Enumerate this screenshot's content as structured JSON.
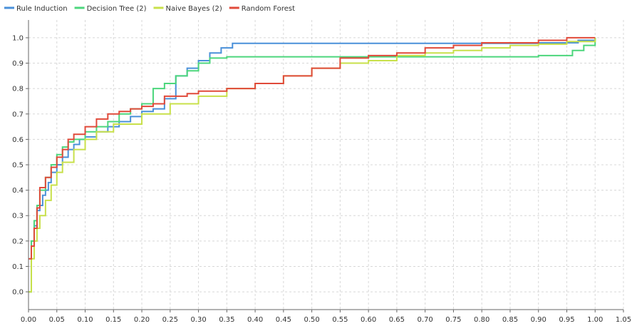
{
  "chart_data": {
    "type": "line",
    "title": "",
    "xlabel": "",
    "ylabel": "",
    "xlim": [
      0,
      1.05
    ],
    "ylim": [
      -0.07,
      1.07
    ],
    "grid": true,
    "legend_position": "top-left",
    "x_ticks": [
      "0.00",
      "0.05",
      "0.10",
      "0.15",
      "0.20",
      "0.25",
      "0.30",
      "0.35",
      "0.40",
      "0.45",
      "0.50",
      "0.55",
      "0.60",
      "0.65",
      "0.70",
      "0.75",
      "0.80",
      "0.85",
      "0.90",
      "0.95",
      "1.00",
      "1.05"
    ],
    "y_ticks": [
      "0.0",
      "0.1",
      "0.2",
      "0.3",
      "0.4",
      "0.5",
      "0.6",
      "0.7",
      "0.8",
      "0.9",
      "1.0"
    ],
    "series": [
      {
        "name": "Rule Induction",
        "color": "#4a90d9",
        "band_color": "#7ec8e8",
        "band_width": 0.08,
        "points": [
          [
            0,
            0
          ],
          [
            0.005,
            0.2
          ],
          [
            0.01,
            0.26
          ],
          [
            0.015,
            0.32
          ],
          [
            0.02,
            0.34
          ],
          [
            0.025,
            0.38
          ],
          [
            0.03,
            0.4
          ],
          [
            0.035,
            0.43
          ],
          [
            0.04,
            0.47
          ],
          [
            0.05,
            0.5
          ],
          [
            0.06,
            0.53
          ],
          [
            0.07,
            0.56
          ],
          [
            0.08,
            0.58
          ],
          [
            0.09,
            0.6
          ],
          [
            0.1,
            0.61
          ],
          [
            0.12,
            0.63
          ],
          [
            0.14,
            0.65
          ],
          [
            0.16,
            0.67
          ],
          [
            0.18,
            0.69
          ],
          [
            0.2,
            0.71
          ],
          [
            0.22,
            0.72
          ],
          [
            0.24,
            0.76
          ],
          [
            0.26,
            0.85
          ],
          [
            0.28,
            0.88
          ],
          [
            0.3,
            0.91
          ],
          [
            0.32,
            0.94
          ],
          [
            0.34,
            0.96
          ],
          [
            0.36,
            0.978
          ],
          [
            0.5,
            0.978
          ],
          [
            0.7,
            0.978
          ],
          [
            0.9,
            0.98
          ],
          [
            0.97,
            0.99
          ],
          [
            1.0,
            1.0
          ]
        ]
      },
      {
        "name": "Decision Tree (2)",
        "color": "#4cd67c",
        "band_color": "#8ff0b0",
        "band_width": 0.07,
        "points": [
          [
            0,
            0
          ],
          [
            0.005,
            0.2
          ],
          [
            0.01,
            0.28
          ],
          [
            0.015,
            0.34
          ],
          [
            0.02,
            0.4
          ],
          [
            0.03,
            0.45
          ],
          [
            0.04,
            0.5
          ],
          [
            0.05,
            0.54
          ],
          [
            0.06,
            0.57
          ],
          [
            0.07,
            0.59
          ],
          [
            0.08,
            0.6
          ],
          [
            0.1,
            0.63
          ],
          [
            0.12,
            0.65
          ],
          [
            0.14,
            0.67
          ],
          [
            0.16,
            0.7
          ],
          [
            0.18,
            0.72
          ],
          [
            0.2,
            0.74
          ],
          [
            0.22,
            0.8
          ],
          [
            0.24,
            0.82
          ],
          [
            0.26,
            0.85
          ],
          [
            0.28,
            0.87
          ],
          [
            0.3,
            0.9
          ],
          [
            0.32,
            0.92
          ],
          [
            0.35,
            0.925
          ],
          [
            0.6,
            0.925
          ],
          [
            0.8,
            0.925
          ],
          [
            0.9,
            0.93
          ],
          [
            0.96,
            0.95
          ],
          [
            0.98,
            0.97
          ],
          [
            1.0,
            1.0
          ]
        ]
      },
      {
        "name": "Naive Bayes (2)",
        "color": "#c8e04a",
        "band_color": "#e8f090",
        "band_width": 0.06,
        "points": [
          [
            0,
            0
          ],
          [
            0.005,
            0.13
          ],
          [
            0.01,
            0.2
          ],
          [
            0.015,
            0.25
          ],
          [
            0.02,
            0.3
          ],
          [
            0.03,
            0.36
          ],
          [
            0.04,
            0.42
          ],
          [
            0.05,
            0.47
          ],
          [
            0.06,
            0.51
          ],
          [
            0.08,
            0.56
          ],
          [
            0.1,
            0.6
          ],
          [
            0.12,
            0.63
          ],
          [
            0.15,
            0.66
          ],
          [
            0.2,
            0.7
          ],
          [
            0.25,
            0.74
          ],
          [
            0.3,
            0.77
          ],
          [
            0.35,
            0.8
          ],
          [
            0.4,
            0.82
          ],
          [
            0.45,
            0.85
          ],
          [
            0.5,
            0.88
          ],
          [
            0.55,
            0.9
          ],
          [
            0.6,
            0.91
          ],
          [
            0.65,
            0.93
          ],
          [
            0.7,
            0.94
          ],
          [
            0.75,
            0.95
          ],
          [
            0.8,
            0.96
          ],
          [
            0.85,
            0.97
          ],
          [
            0.9,
            0.975
          ],
          [
            0.95,
            0.985
          ],
          [
            1.0,
            1.0
          ]
        ]
      },
      {
        "name": "Random Forest",
        "color": "#e04a3a",
        "band_color": "#f0a0a0",
        "band_width": 0.06,
        "points": [
          [
            0,
            0.13
          ],
          [
            0.005,
            0.18
          ],
          [
            0.01,
            0.25
          ],
          [
            0.015,
            0.33
          ],
          [
            0.02,
            0.41
          ],
          [
            0.03,
            0.45
          ],
          [
            0.04,
            0.49
          ],
          [
            0.05,
            0.53
          ],
          [
            0.06,
            0.56
          ],
          [
            0.07,
            0.6
          ],
          [
            0.08,
            0.62
          ],
          [
            0.1,
            0.65
          ],
          [
            0.12,
            0.68
          ],
          [
            0.14,
            0.7
          ],
          [
            0.16,
            0.71
          ],
          [
            0.18,
            0.72
          ],
          [
            0.2,
            0.73
          ],
          [
            0.22,
            0.74
          ],
          [
            0.24,
            0.77
          ],
          [
            0.26,
            0.77
          ],
          [
            0.28,
            0.78
          ],
          [
            0.3,
            0.79
          ],
          [
            0.35,
            0.8
          ],
          [
            0.4,
            0.82
          ],
          [
            0.45,
            0.85
          ],
          [
            0.5,
            0.88
          ],
          [
            0.55,
            0.92
          ],
          [
            0.6,
            0.93
          ],
          [
            0.65,
            0.94
          ],
          [
            0.7,
            0.96
          ],
          [
            0.75,
            0.97
          ],
          [
            0.8,
            0.98
          ],
          [
            0.9,
            0.99
          ],
          [
            0.95,
            1.0
          ],
          [
            1.0,
            1.0
          ]
        ]
      }
    ]
  }
}
